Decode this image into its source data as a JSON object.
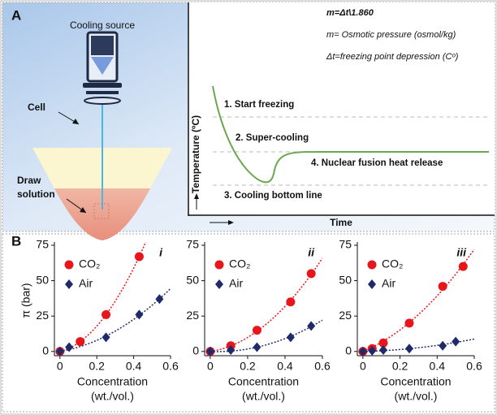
{
  "panel_a": {
    "label": "A",
    "cooling_source": "Cooling source",
    "cell": "Cell",
    "draw_solution": "Draw solution",
    "equation": "m=Δt\\1.860",
    "m_def": "m= Osmotic pressure (osmol/kg)",
    "dt_def": "Δt=freezing point depression (Cᵒ)",
    "y_label": "Temperature (ºC)",
    "x_label": "Time",
    "steps": [
      "1. Start freezing",
      "2. Super-cooling",
      "3. Cooling bottom line",
      "4. Nuclear fusion heat release"
    ]
  },
  "panel_b_label": "B",
  "chart_data": [
    {
      "type": "scatter",
      "title": "i",
      "y_label": "π (bar)",
      "x_label": [
        "Concentration",
        "(wt./vol.)"
      ],
      "xlim": [
        -0.03,
        0.6
      ],
      "ylim": [
        -3,
        75
      ],
      "xticks": [
        0,
        0.2,
        0.4,
        0.6
      ],
      "yticks": [
        0,
        25,
        50,
        75
      ],
      "series": [
        {
          "name": "CO₂",
          "color": "#e8161b",
          "x": [
            0,
            0.11,
            0.25,
            0.43
          ],
          "values": [
            0,
            7,
            26,
            67
          ]
        },
        {
          "name": "Air",
          "color": "#1f2a6b",
          "x": [
            0,
            0.05,
            0.25,
            0.43,
            0.54
          ],
          "values": [
            0,
            3,
            10,
            26,
            37
          ]
        }
      ]
    },
    {
      "type": "scatter",
      "title": "ii",
      "x_label": [
        "Concentration",
        "(wt./vol.)"
      ],
      "xlim": [
        -0.03,
        0.6
      ],
      "ylim": [
        -3,
        75
      ],
      "xticks": [
        0,
        0.2,
        0.4,
        0.6
      ],
      "yticks": [
        0,
        25,
        50,
        75
      ],
      "series": [
        {
          "name": "CO₂",
          "color": "#e8161b",
          "x": [
            0,
            0.11,
            0.25,
            0.43,
            0.54
          ],
          "values": [
            0,
            4,
            15,
            35,
            55
          ]
        },
        {
          "name": "Air",
          "color": "#1f2a6b",
          "x": [
            0,
            0.11,
            0.25,
            0.43,
            0.54
          ],
          "values": [
            0,
            1,
            3,
            10,
            18
          ]
        }
      ]
    },
    {
      "type": "scatter",
      "title": "iii",
      "x_label": [
        "Concentration",
        "(wt./vol.)"
      ],
      "xlim": [
        -0.03,
        0.6
      ],
      "ylim": [
        -3,
        75
      ],
      "xticks": [
        0,
        0.2,
        0.4,
        0.6
      ],
      "yticks": [
        0,
        25,
        50,
        75
      ],
      "series": [
        {
          "name": "CO₂",
          "color": "#e8161b",
          "x": [
            0,
            0.05,
            0.11,
            0.25,
            0.43,
            0.54
          ],
          "values": [
            0,
            2,
            6,
            20,
            46,
            60
          ]
        },
        {
          "name": "Air",
          "color": "#1f2a6b",
          "x": [
            0,
            0.05,
            0.11,
            0.25,
            0.43,
            0.5
          ],
          "values": [
            0,
            0.5,
            1,
            2,
            4,
            7
          ]
        }
      ]
    }
  ]
}
